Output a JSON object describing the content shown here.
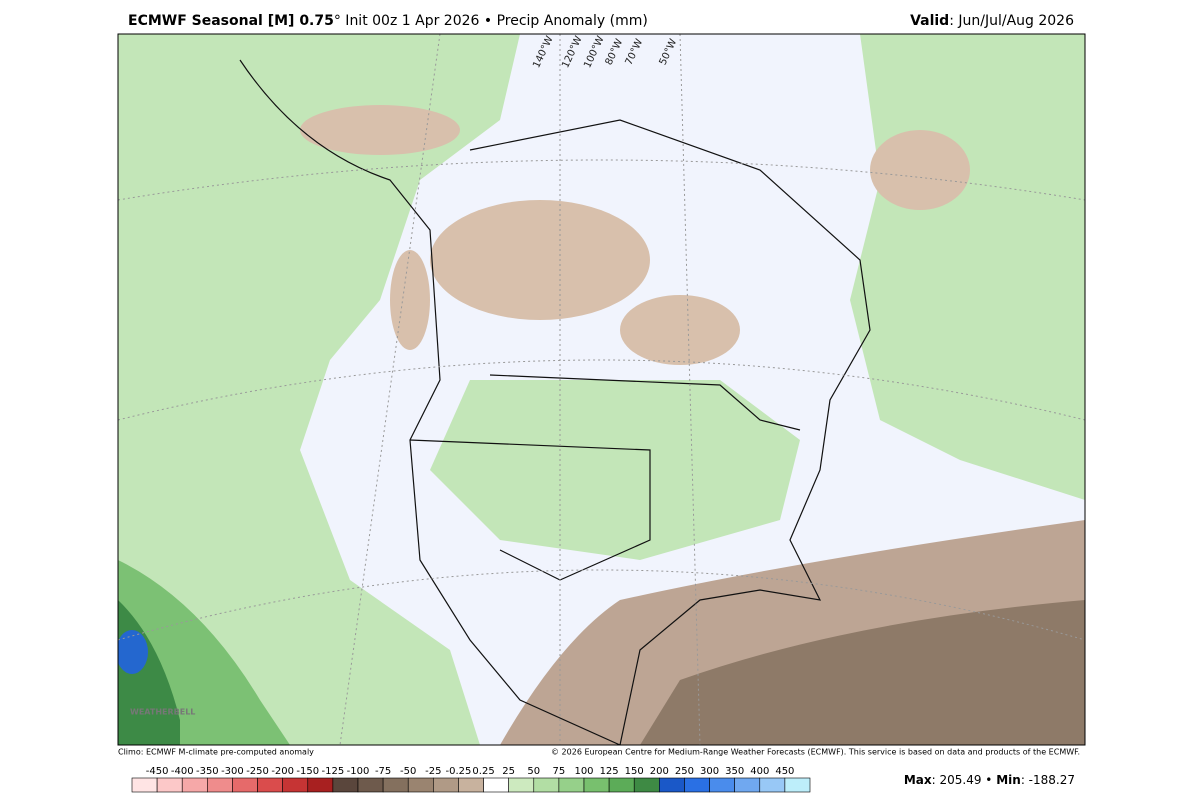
{
  "header": {
    "title_bold": "ECMWF Seasonal [M] 0.75",
    "title_rest": "° Init 00z 1 Apr 2026 • Precip Anomaly (mm)",
    "valid_label": "Valid",
    "valid_value": ": Jun/Jul/Aug 2026"
  },
  "map": {
    "longitude_labels": [
      "140°W",
      "120°W",
      "100°W",
      "80°W",
      "70°W",
      "50°W"
    ],
    "logo": "WEATHERBELL"
  },
  "footer": {
    "climo": "Climo: ECMWF M-climate pre-computed anomaly",
    "copyright": "© 2026 European Centre for Medium-Range Weather Forecasts (ECMWF). This service is based on data and products of the ECMWF.",
    "max_label": "Max",
    "max_value": ": 205.49 • ",
    "min_label": "Min",
    "min_value": ": -188.27"
  },
  "colorbar": {
    "labels": [
      "-450",
      "-400",
      "-350",
      "-300",
      "-250",
      "-200",
      "-150",
      "-125",
      "-100",
      "-75",
      "-50",
      "-25",
      "-0.25",
      "0.25",
      "25",
      "50",
      "75",
      "100",
      "125",
      "150",
      "200",
      "250",
      "300",
      "350",
      "400",
      "450"
    ],
    "colors": [
      "#ffe4e4",
      "#fcc8c8",
      "#f6a8a8",
      "#ef8c8c",
      "#e66a6a",
      "#da4c4c",
      "#c63434",
      "#a82020",
      "#5a463c",
      "#6e5a4c",
      "#84705e",
      "#9a8470",
      "#b09a86",
      "#c8b29e",
      "#ffffff",
      "#cdeabf",
      "#b2dea4",
      "#96d08a",
      "#78c06e",
      "#5cac58",
      "#3e8a44",
      "#1a58c8",
      "#2a70e4",
      "#4a8cec",
      "#70a8f0",
      "#98c8f6",
      "#bdeefa"
    ]
  }
}
